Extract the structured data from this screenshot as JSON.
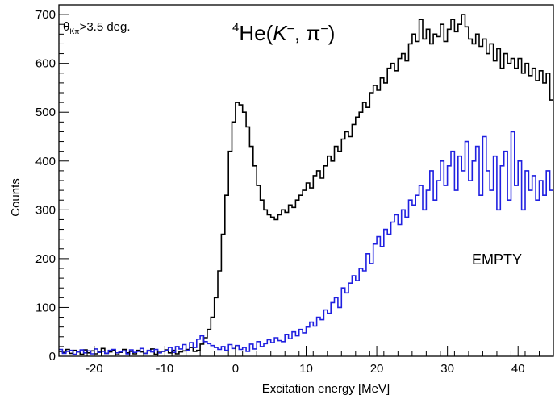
{
  "chart_data": {
    "type": "line",
    "title": "",
    "xlabel": "Excitation energy [MeV]",
    "ylabel": "Counts",
    "xlim": [
      -25,
      45
    ],
    "ylim": [
      0,
      720
    ],
    "x_ticks": [
      -20,
      -10,
      0,
      10,
      20,
      30,
      40
    ],
    "y_ticks": [
      0,
      100,
      200,
      300,
      400,
      500,
      600,
      700
    ],
    "grid": false,
    "legend": "none",
    "annotations": {
      "cut": {
        "theta": "θ",
        "sub": "Kπ",
        "rest": ">3.5 deg."
      },
      "reaction": {
        "sup": "4",
        "nucleus": "He",
        "open": "(",
        "k": "K",
        "kcharge": "−",
        "sep": ", ",
        "pi": "π",
        "picharge": "−",
        "close": ")"
      },
      "empty": "EMPTY"
    },
    "colors": {
      "signal": "#000000",
      "empty": "#2020e0",
      "empty_label": "#3a8ee6"
    },
    "series": [
      {
        "x": [
          -25,
          -24.5,
          -24,
          -23.5,
          -23,
          -22.5,
          -22,
          -21.5,
          -21,
          -20.5,
          -20,
          -19.5,
          -19,
          -18.5,
          -18,
          -17.5,
          -17,
          -16.5,
          -16,
          -15.5,
          -15,
          -14.5,
          -14,
          -13.5,
          -13,
          -12.5,
          -12,
          -11.5,
          -11,
          -10.5,
          -10,
          -9.5,
          -9,
          -8.5,
          -8,
          -7.5,
          -7,
          -6.5,
          -6,
          -5.5,
          -5,
          -4.5,
          -4,
          -3.5,
          -3,
          -2.5,
          -2,
          -1.5,
          -1,
          -0.5,
          0,
          0.5,
          1,
          1.5,
          2,
          2.5,
          3,
          3.5,
          4,
          4.5,
          5,
          5.5,
          6,
          6.5,
          7,
          7.5,
          8,
          8.5,
          9,
          9.5,
          10,
          10.5,
          11,
          11.5,
          12,
          12.5,
          13,
          13.5,
          14,
          14.5,
          15,
          15.5,
          16,
          16.5,
          17,
          17.5,
          18,
          18.5,
          19,
          19.5,
          20,
          20.5,
          21,
          21.5,
          22,
          22.5,
          23,
          23.5,
          24,
          24.5,
          25,
          25.5,
          26,
          26.5,
          27,
          27.5,
          28,
          28.5,
          29,
          29.5,
          30,
          30.5,
          31,
          31.5,
          32,
          32.5,
          33,
          33.5,
          34,
          34.5,
          35,
          35.5,
          36,
          36.5,
          37,
          37.5,
          38,
          38.5,
          39,
          39.5,
          40,
          40.5,
          41,
          41.5,
          42,
          42.5,
          43,
          43.5,
          44,
          44.5
        ],
        "values": [
          10,
          8,
          14,
          6,
          12,
          9,
          4,
          13,
          7,
          11,
          5,
          10,
          16,
          6,
          9,
          12,
          3,
          8,
          14,
          7,
          10,
          5,
          12,
          9,
          6,
          11,
          15,
          4,
          8,
          10,
          13,
          7,
          12,
          5,
          9,
          11,
          14,
          18,
          10,
          12,
          25,
          38,
          55,
          80,
          120,
          175,
          250,
          330,
          420,
          480,
          520,
          515,
          500,
          470,
          430,
          390,
          350,
          320,
          300,
          290,
          285,
          280,
          290,
          300,
          295,
          310,
          305,
          320,
          330,
          340,
          355,
          345,
          370,
          380,
          365,
          390,
          410,
          400,
          430,
          420,
          445,
          460,
          450,
          475,
          490,
          500,
          520,
          510,
          540,
          555,
          545,
          570,
          560,
          590,
          600,
          585,
          610,
          620,
          605,
          640,
          660,
          645,
          690,
          650,
          670,
          640,
          660,
          655,
          680,
          645,
          670,
          690,
          665,
          680,
          700,
          675,
          650,
          640,
          660,
          635,
          650,
          620,
          640,
          605,
          630,
          590,
          620,
          600,
          610,
          590,
          610,
          580,
          600,
          575,
          590,
          565,
          585,
          560,
          580,
          525
        ]
      },
      {
        "x": [
          -25,
          -24.5,
          -24,
          -23.5,
          -23,
          -22.5,
          -22,
          -21.5,
          -21,
          -20.5,
          -20,
          -19.5,
          -19,
          -18.5,
          -18,
          -17.5,
          -17,
          -16.5,
          -16,
          -15.5,
          -15,
          -14.5,
          -14,
          -13.5,
          -13,
          -12.5,
          -12,
          -11.5,
          -11,
          -10.5,
          -10,
          -9.5,
          -9,
          -8.5,
          -8,
          -7.5,
          -7,
          -6.5,
          -6,
          -5.5,
          -5,
          -4.5,
          -4,
          -3.5,
          -3,
          -2.5,
          -2,
          -1.5,
          -1,
          -0.5,
          0,
          0.5,
          1,
          1.5,
          2,
          2.5,
          3,
          3.5,
          4,
          4.5,
          5,
          5.5,
          6,
          6.5,
          7,
          7.5,
          8,
          8.5,
          9,
          9.5,
          10,
          10.5,
          11,
          11.5,
          12,
          12.5,
          13,
          13.5,
          14,
          14.5,
          15,
          15.5,
          16,
          16.5,
          17,
          17.5,
          18,
          18.5,
          19,
          19.5,
          20,
          20.5,
          21,
          21.5,
          22,
          22.5,
          23,
          23.5,
          24,
          24.5,
          25,
          25.5,
          26,
          26.5,
          27,
          27.5,
          28,
          28.5,
          29,
          29.5,
          30,
          30.5,
          31,
          31.5,
          32,
          32.5,
          33,
          33.5,
          34,
          34.5,
          35,
          35.5,
          36,
          36.5,
          37,
          37.5,
          38,
          38.5,
          39,
          39.5,
          40,
          40.5,
          41,
          41.5,
          42,
          42.5,
          43,
          43.5,
          44,
          44.5
        ],
        "values": [
          14,
          6,
          10,
          12,
          4,
          9,
          13,
          7,
          11,
          5,
          15,
          8,
          10,
          6,
          12,
          14,
          7,
          9,
          11,
          5,
          13,
          8,
          10,
          16,
          6,
          12,
          9,
          14,
          7,
          10,
          12,
          18,
          8,
          20,
          15,
          24,
          12,
          28,
          18,
          35,
          42,
          30,
          26,
          22,
          18,
          14,
          20,
          12,
          24,
          16,
          22,
          14,
          18,
          10,
          25,
          15,
          30,
          20,
          26,
          34,
          28,
          38,
          32,
          30,
          45,
          36,
          50,
          42,
          55,
          48,
          60,
          70,
          62,
          80,
          75,
          95,
          88,
          110,
          120,
          100,
          140,
          130,
          150,
          165,
          155,
          180,
          175,
          210,
          190,
          230,
          245,
          225,
          260,
          250,
          275,
          290,
          270,
          300,
          285,
          320,
          310,
          330,
          350,
          300,
          340,
          380,
          320,
          360,
          400,
          350,
          390,
          420,
          340,
          410,
          380,
          440,
          360,
          400,
          430,
          330,
          450,
          380,
          340,
          410,
          300,
          390,
          420,
          320,
          460,
          350,
          400,
          300,
          380,
          340,
          370,
          320,
          360,
          330,
          380,
          340
        ]
      }
    ]
  }
}
